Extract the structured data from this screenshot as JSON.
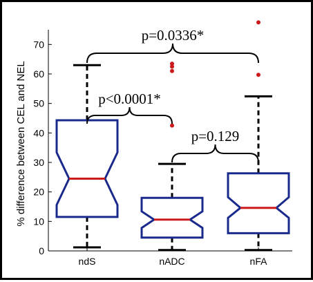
{
  "chart_data": {
    "type": "boxplot",
    "ylabel": "% difference between CEL and NEL",
    "ylim": [
      0,
      75
    ],
    "yticks": [
      0,
      10,
      20,
      30,
      40,
      50,
      60,
      70
    ],
    "yticks_labels": [
      "0",
      "10",
      "20",
      "30",
      "40",
      "50",
      "60",
      "70"
    ],
    "categories": [
      "ndS",
      "nADC",
      "nFA"
    ],
    "boxes": [
      {
        "label": "ndS",
        "whisker_low": 1.2,
        "q1": 11.5,
        "median": 24.5,
        "q3": 44.3,
        "whisker_high": 63,
        "notch_low": 15.6,
        "notch_high": 33.4,
        "outliers": []
      },
      {
        "label": "nADC",
        "whisker_low": 0.3,
        "q1": 4.5,
        "median": 10.6,
        "q3": 18.0,
        "whisker_high": 29.5,
        "notch_low": 7.8,
        "notch_high": 13.4,
        "outliers": [
          42.5,
          61.0,
          62.5,
          63.5
        ]
      },
      {
        "label": "nFA",
        "whisker_low": 0.3,
        "q1": 6.0,
        "median": 14.6,
        "q3": 26.3,
        "whisker_high": 52.4,
        "notch_low": 11.2,
        "notch_high": 18.2,
        "outliers": [
          59.7,
          77.5
        ]
      }
    ],
    "comparisons": [
      {
        "from": "ndS",
        "to": "nFA",
        "text": "p=0.0336*"
      },
      {
        "from": "ndS",
        "to": "nADC",
        "text": "p<0.0001*"
      },
      {
        "from": "nADC",
        "to": "nFA",
        "text": "p=0.129"
      }
    ],
    "colors": {
      "box": "#1a2a8c",
      "median": "#cc1a1a",
      "outlier": "#cc1a1a",
      "whisker": "#000000"
    }
  }
}
